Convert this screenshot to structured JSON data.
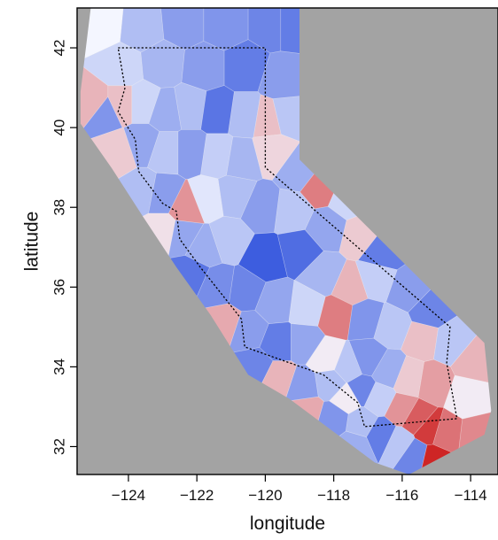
{
  "chart_data": {
    "type": "heatmap",
    "title": "",
    "xlabel": "longitude",
    "ylabel": "latitude",
    "xlim": [
      -125.5,
      -113.2
    ],
    "ylim": [
      31.3,
      43.0
    ],
    "x_ticks": [
      -124,
      -122,
      -120,
      -118,
      -116,
      -114
    ],
    "x_tick_labels": [
      "−124",
      "−122",
      "−120",
      "−118",
      "−116",
      "−114"
    ],
    "y_ticks": [
      32,
      34,
      36,
      38,
      40,
      42
    ],
    "y_tick_labels": [
      "32",
      "34",
      "36",
      "38",
      "40",
      "42"
    ],
    "grid": false,
    "legend": "none",
    "background_color": "#a3a3a3",
    "colormap": [
      "#3355dd",
      "#f4f6ff",
      "#cc1a1a"
    ],
    "region_outline": [
      [
        -124.3,
        42.0
      ],
      [
        -120.0,
        42.0
      ],
      [
        -120.0,
        39.0
      ],
      [
        -114.6,
        35.0
      ],
      [
        -114.7,
        34.1
      ],
      [
        -114.4,
        32.7
      ],
      [
        -117.1,
        32.5
      ],
      [
        -117.3,
        33.1
      ],
      [
        -118.3,
        33.8
      ],
      [
        -120.6,
        34.5
      ],
      [
        -120.7,
        35.2
      ],
      [
        -121.9,
        36.5
      ],
      [
        -122.5,
        37.2
      ],
      [
        -122.6,
        37.9
      ],
      [
        -123.0,
        38.1
      ],
      [
        -123.7,
        38.9
      ],
      [
        -123.8,
        39.7
      ],
      [
        -124.3,
        40.4
      ],
      [
        -124.1,
        41.0
      ],
      [
        -124.3,
        42.0
      ]
    ],
    "hull": [
      [
        -125.1,
        43.0
      ],
      [
        -119.0,
        43.0
      ],
      [
        -119.0,
        39.2
      ],
      [
        -113.6,
        34.6
      ],
      [
        -113.4,
        32.9
      ],
      [
        -113.6,
        32.3
      ],
      [
        -114.7,
        31.8
      ],
      [
        -115.8,
        31.3
      ],
      [
        -116.8,
        31.6
      ],
      [
        -119.3,
        33.2
      ],
      [
        -120.5,
        33.8
      ],
      [
        -121.6,
        35.3
      ],
      [
        -122.6,
        36.5
      ],
      [
        -123.6,
        37.8
      ],
      [
        -124.5,
        39.0
      ],
      [
        -125.4,
        40.1
      ],
      [
        -125.4,
        40.9
      ],
      [
        -125.1,
        43.0
      ]
    ],
    "values": [
      {
        "lon": -124.8,
        "lat": 42.6,
        "v": 0.0
      },
      {
        "lon": -123.6,
        "lat": 42.5,
        "v": -0.35
      },
      {
        "lon": -122.4,
        "lat": 42.6,
        "v": -0.55
      },
      {
        "lon": -121.2,
        "lat": 42.6,
        "v": -0.6
      },
      {
        "lon": -119.8,
        "lat": 42.6,
        "v": -0.7
      },
      {
        "lon": -119.3,
        "lat": 42.6,
        "v": -0.75
      },
      {
        "lon": -124.2,
        "lat": 41.5,
        "v": -0.2
      },
      {
        "lon": -123.0,
        "lat": 41.6,
        "v": -0.4
      },
      {
        "lon": -121.8,
        "lat": 41.5,
        "v": -0.55
      },
      {
        "lon": -120.6,
        "lat": 41.5,
        "v": -0.75
      },
      {
        "lon": -119.5,
        "lat": 41.2,
        "v": -0.55
      },
      {
        "lon": -125.0,
        "lat": 40.6,
        "v": 0.3
      },
      {
        "lon": -124.7,
        "lat": 40.4,
        "v": -0.6
      },
      {
        "lon": -124.2,
        "lat": 40.6,
        "v": 0.25
      },
      {
        "lon": -123.6,
        "lat": 40.6,
        "v": -0.2
      },
      {
        "lon": -122.9,
        "lat": 40.4,
        "v": -0.45
      },
      {
        "lon": -122.2,
        "lat": 40.5,
        "v": -0.35
      },
      {
        "lon": -121.4,
        "lat": 40.4,
        "v": -0.8
      },
      {
        "lon": -120.6,
        "lat": 40.3,
        "v": -0.35
      },
      {
        "lon": -119.9,
        "lat": 40.2,
        "v": 0.25
      },
      {
        "lon": -119.4,
        "lat": 40.3,
        "v": -0.3
      },
      {
        "lon": -124.3,
        "lat": 39.4,
        "v": 0.2
      },
      {
        "lon": -123.6,
        "lat": 39.6,
        "v": -0.5
      },
      {
        "lon": -122.9,
        "lat": 39.4,
        "v": -0.3
      },
      {
        "lon": -122.2,
        "lat": 39.4,
        "v": -0.55
      },
      {
        "lon": -121.4,
        "lat": 39.3,
        "v": -0.25
      },
      {
        "lon": -120.7,
        "lat": 39.2,
        "v": -0.4
      },
      {
        "lon": -119.8,
        "lat": 39.4,
        "v": 0.15
      },
      {
        "lon": -119.0,
        "lat": 38.9,
        "v": -0.45
      },
      {
        "lon": -118.4,
        "lat": 38.5,
        "v": 0.55
      },
      {
        "lon": -117.6,
        "lat": 38.2,
        "v": -0.2
      },
      {
        "lon": -123.6,
        "lat": 38.4,
        "v": -0.35
      },
      {
        "lon": -123.0,
        "lat": 38.3,
        "v": -0.55
      },
      {
        "lon": -122.3,
        "lat": 38.0,
        "v": 0.45
      },
      {
        "lon": -121.7,
        "lat": 38.2,
        "v": -0.1
      },
      {
        "lon": -120.9,
        "lat": 38.3,
        "v": -0.35
      },
      {
        "lon": -120.1,
        "lat": 38.0,
        "v": -0.55
      },
      {
        "lon": -119.2,
        "lat": 37.9,
        "v": -0.3
      },
      {
        "lon": -118.2,
        "lat": 37.5,
        "v": -0.5
      },
      {
        "lon": -117.2,
        "lat": 37.3,
        "v": 0.2
      },
      {
        "lon": -116.6,
        "lat": 36.9,
        "v": -0.75
      },
      {
        "lon": -123.0,
        "lat": 37.4,
        "v": 0.1
      },
      {
        "lon": -122.4,
        "lat": 37.3,
        "v": -0.5
      },
      {
        "lon": -121.8,
        "lat": 37.0,
        "v": -0.45
      },
      {
        "lon": -121.1,
        "lat": 37.2,
        "v": -0.3
      },
      {
        "lon": -120.0,
        "lat": 36.7,
        "v": -0.95
      },
      {
        "lon": -119.0,
        "lat": 36.9,
        "v": -0.85
      },
      {
        "lon": -118.3,
        "lat": 36.3,
        "v": -0.4
      },
      {
        "lon": -117.5,
        "lat": 36.0,
        "v": 0.3
      },
      {
        "lon": -116.8,
        "lat": 36.2,
        "v": -0.25
      },
      {
        "lon": -115.8,
        "lat": 35.9,
        "v": -0.55
      },
      {
        "lon": -115.2,
        "lat": 35.4,
        "v": -0.7
      },
      {
        "lon": -122.2,
        "lat": 36.3,
        "v": -0.8
      },
      {
        "lon": -121.4,
        "lat": 36.0,
        "v": -0.65
      },
      {
        "lon": -120.6,
        "lat": 35.9,
        "v": -0.7
      },
      {
        "lon": -119.7,
        "lat": 35.6,
        "v": -0.5
      },
      {
        "lon": -118.8,
        "lat": 35.5,
        "v": -0.2
      },
      {
        "lon": -117.9,
        "lat": 35.3,
        "v": 0.55
      },
      {
        "lon": -117.1,
        "lat": 35.2,
        "v": -0.6
      },
      {
        "lon": -116.3,
        "lat": 35.0,
        "v": -0.3
      },
      {
        "lon": -115.4,
        "lat": 34.7,
        "v": 0.25
      },
      {
        "lon": -114.6,
        "lat": 34.6,
        "v": -0.3
      },
      {
        "lon": -113.9,
        "lat": 34.1,
        "v": 0.3
      },
      {
        "lon": -121.2,
        "lat": 35.1,
        "v": 0.35
      },
      {
        "lon": -120.5,
        "lat": 34.9,
        "v": -0.55
      },
      {
        "lon": -119.6,
        "lat": 34.6,
        "v": -0.75
      },
      {
        "lon": -118.9,
        "lat": 34.6,
        "v": -0.5
      },
      {
        "lon": -118.2,
        "lat": 34.2,
        "v": 0.05
      },
      {
        "lon": -117.6,
        "lat": 34.0,
        "v": -0.3
      },
      {
        "lon": -117.0,
        "lat": 34.2,
        "v": -0.6
      },
      {
        "lon": -116.4,
        "lat": 33.9,
        "v": -0.45
      },
      {
        "lon": -115.8,
        "lat": 33.7,
        "v": 0.2
      },
      {
        "lon": -115.1,
        "lat": 33.6,
        "v": 0.4
      },
      {
        "lon": -114.1,
        "lat": 33.3,
        "v": 0.05
      },
      {
        "lon": -120.3,
        "lat": 34.0,
        "v": -0.7
      },
      {
        "lon": -119.6,
        "lat": 33.7,
        "v": 0.3
      },
      {
        "lon": -118.9,
        "lat": 33.5,
        "v": -0.55
      },
      {
        "lon": -118.1,
        "lat": 33.6,
        "v": -0.35
      },
      {
        "lon": -117.6,
        "lat": 33.2,
        "v": 0.05
      },
      {
        "lon": -117.2,
        "lat": 33.4,
        "v": -0.7
      },
      {
        "lon": -116.7,
        "lat": 33.2,
        "v": -0.25
      },
      {
        "lon": -116.0,
        "lat": 32.9,
        "v": 0.45
      },
      {
        "lon": -115.6,
        "lat": 32.7,
        "v": 0.7
      },
      {
        "lon": -115.2,
        "lat": 32.4,
        "v": 0.85
      },
      {
        "lon": -114.8,
        "lat": 32.3,
        "v": 0.6
      },
      {
        "lon": -113.8,
        "lat": 32.2,
        "v": 0.5
      },
      {
        "lon": -118.8,
        "lat": 32.9,
        "v": 0.35
      },
      {
        "lon": -118.0,
        "lat": 32.7,
        "v": -0.6
      },
      {
        "lon": -117.2,
        "lat": 32.6,
        "v": -0.35
      },
      {
        "lon": -116.6,
        "lat": 32.3,
        "v": -0.75
      },
      {
        "lon": -116.1,
        "lat": 32.1,
        "v": -0.3
      },
      {
        "lon": -115.6,
        "lat": 31.8,
        "v": -0.7
      },
      {
        "lon": -115.1,
        "lat": 31.7,
        "v": 0.95
      },
      {
        "lon": -117.4,
        "lat": 32.0,
        "v": -0.45
      }
    ]
  }
}
